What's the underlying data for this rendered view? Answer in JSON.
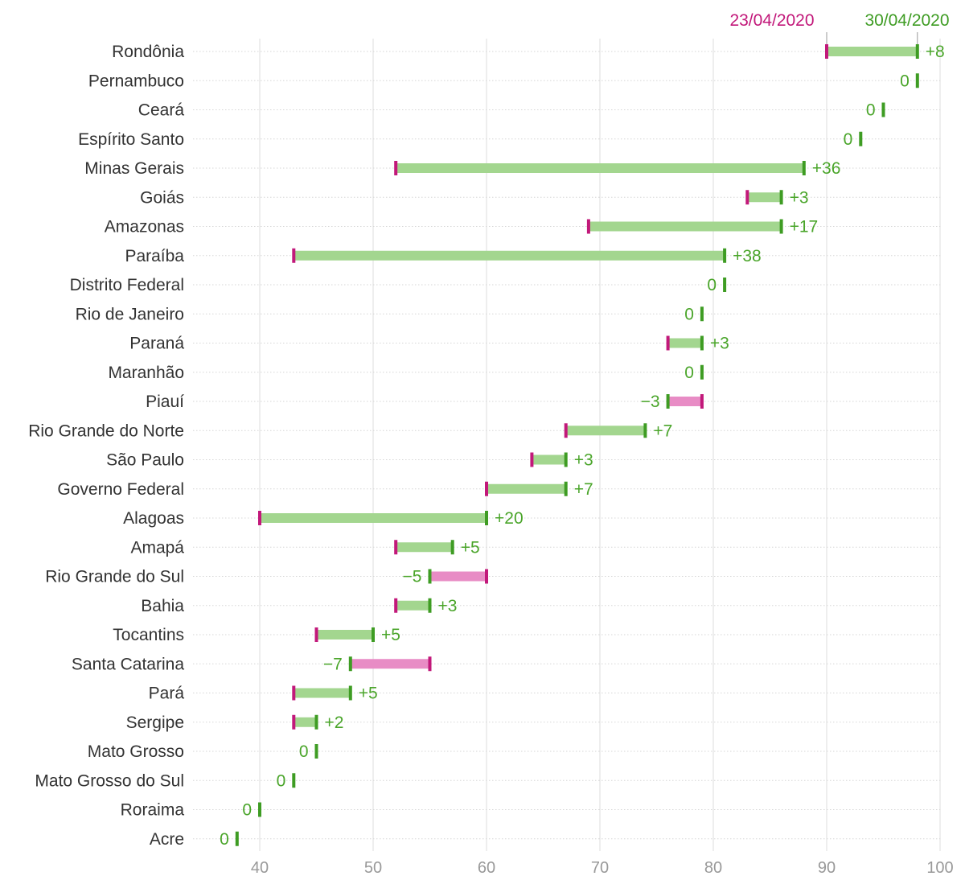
{
  "chart_data": {
    "type": "dumbbell",
    "legend": {
      "start_label": "23/04/2020",
      "end_label": "30/04/2020",
      "position": "top-right"
    },
    "colors": {
      "start_marker": "#c2187a",
      "end_marker": "#3e9c23",
      "increase_bar": "#a3d68f",
      "decrease_bar": "#e88cc5",
      "increase_text": "#4aa52a",
      "decrease_text": "#4aa52a",
      "grid": "#dddddd",
      "row_guide": "#d6d6d6"
    },
    "x_axis": {
      "range": [
        35,
        100
      ],
      "ticks": [
        40,
        50,
        60,
        70,
        80,
        90,
        100
      ],
      "tick_labels": [
        "40",
        "50",
        "60",
        "70",
        "80",
        "90",
        "100"
      ],
      "grid": true
    },
    "rows": [
      {
        "category": "Rondônia",
        "start": 90,
        "end": 98,
        "delta_label": "+8"
      },
      {
        "category": "Pernambuco",
        "start": 98,
        "end": 98,
        "delta_label": "0"
      },
      {
        "category": "Ceará",
        "start": 95,
        "end": 95,
        "delta_label": "0"
      },
      {
        "category": "Espírito Santo",
        "start": 93,
        "end": 93,
        "delta_label": "0"
      },
      {
        "category": "Minas Gerais",
        "start": 52,
        "end": 88,
        "delta_label": "+36"
      },
      {
        "category": "Goiás",
        "start": 83,
        "end": 86,
        "delta_label": "+3"
      },
      {
        "category": "Amazonas",
        "start": 69,
        "end": 86,
        "delta_label": "+17"
      },
      {
        "category": "Paraíba",
        "start": 43,
        "end": 81,
        "delta_label": "+38"
      },
      {
        "category": "Distrito Federal",
        "start": 81,
        "end": 81,
        "delta_label": "0"
      },
      {
        "category": "Rio de Janeiro",
        "start": 79,
        "end": 79,
        "delta_label": "0"
      },
      {
        "category": "Paraná",
        "start": 76,
        "end": 79,
        "delta_label": "+3"
      },
      {
        "category": "Maranhão",
        "start": 79,
        "end": 79,
        "delta_label": "0"
      },
      {
        "category": "Piauí",
        "start": 79,
        "end": 76,
        "delta_label": "−3"
      },
      {
        "category": "Rio Grande do Norte",
        "start": 67,
        "end": 74,
        "delta_label": "+7"
      },
      {
        "category": "São Paulo",
        "start": 64,
        "end": 67,
        "delta_label": "+3"
      },
      {
        "category": "Governo Federal",
        "start": 60,
        "end": 67,
        "delta_label": "+7"
      },
      {
        "category": "Alagoas",
        "start": 40,
        "end": 60,
        "delta_label": "+20"
      },
      {
        "category": "Amapá",
        "start": 52,
        "end": 57,
        "delta_label": "+5"
      },
      {
        "category": "Rio Grande do Sul",
        "start": 60,
        "end": 55,
        "delta_label": "−5"
      },
      {
        "category": "Bahia",
        "start": 52,
        "end": 55,
        "delta_label": "+3"
      },
      {
        "category": "Tocantins",
        "start": 45,
        "end": 50,
        "delta_label": "+5"
      },
      {
        "category": "Santa Catarina",
        "start": 55,
        "end": 48,
        "delta_label": "−7"
      },
      {
        "category": "Pará",
        "start": 43,
        "end": 48,
        "delta_label": "+5"
      },
      {
        "category": "Sergipe",
        "start": 43,
        "end": 45,
        "delta_label": "+2"
      },
      {
        "category": "Mato Grosso",
        "start": 45,
        "end": 45,
        "delta_label": "0"
      },
      {
        "category": "Mato Grosso do Sul",
        "start": 43,
        "end": 43,
        "delta_label": "0"
      },
      {
        "category": "Roraima",
        "start": 40,
        "end": 40,
        "delta_label": "0"
      },
      {
        "category": "Acre",
        "start": 38,
        "end": 38,
        "delta_label": "0"
      }
    ]
  }
}
